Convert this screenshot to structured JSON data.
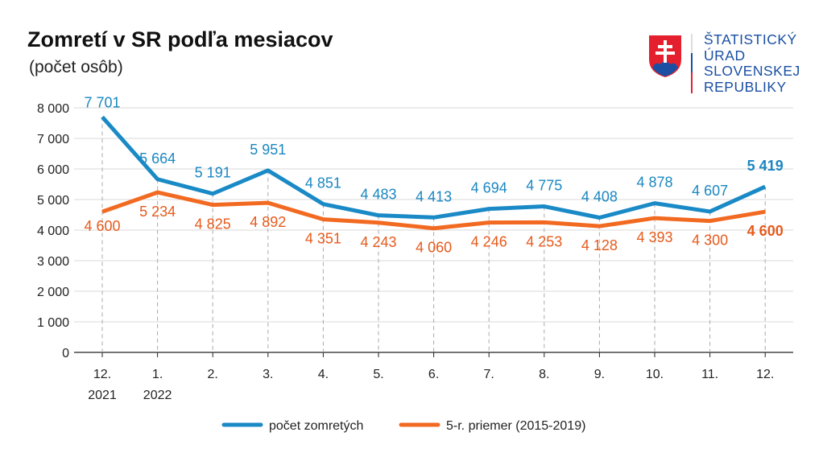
{
  "title": "Zomretí v SR podľa mesiacov",
  "subtitle": "(počet osôb)",
  "logo": {
    "lines": [
      "ŠTATISTICKÝ",
      "ÚRAD",
      "SLOVENSKEJ",
      "REPUBLIKY"
    ]
  },
  "chart_data": {
    "type": "line",
    "categories": [
      [
        "12.",
        "2021"
      ],
      [
        "1.",
        "2022"
      ],
      [
        "2.",
        ""
      ],
      [
        "3.",
        ""
      ],
      [
        "4.",
        ""
      ],
      [
        "5.",
        ""
      ],
      [
        "6.",
        ""
      ],
      [
        "7.",
        ""
      ],
      [
        "8.",
        ""
      ],
      [
        "9.",
        ""
      ],
      [
        "10.",
        ""
      ],
      [
        "11.",
        ""
      ],
      [
        "12.",
        ""
      ]
    ],
    "ylim": [
      0,
      8000
    ],
    "yticks": [
      0,
      1000,
      2000,
      3000,
      4000,
      5000,
      6000,
      7000,
      8000
    ],
    "ytick_labels": [
      "0",
      "1 000",
      "2 000",
      "3 000",
      "4 000",
      "5 000",
      "6 000",
      "7 000",
      "8 000"
    ],
    "grid": true,
    "legend_position": "bottom",
    "series": [
      {
        "name": "počet zomretých",
        "color": "#1a8ac6",
        "label_color": "#1a87c2",
        "values": [
          7701,
          5664,
          5191,
          5951,
          4851,
          4483,
          4413,
          4694,
          4775,
          4408,
          4878,
          4607,
          5419
        ],
        "labels": [
          "7 701",
          "5 664",
          "5 191",
          "5 951",
          "4 851",
          "4 483",
          "4 413",
          "4 694",
          "4 775",
          "4 408",
          "4 878",
          "4 607",
          "5 419"
        ]
      },
      {
        "name": "5-r. priemer (2015-2019)",
        "color": "#f26a21",
        "label_color": "#e65a1c",
        "values": [
          4600,
          5234,
          4825,
          4892,
          4351,
          4243,
          4060,
          4246,
          4253,
          4128,
          4393,
          4300,
          4600
        ],
        "labels": [
          "4 600",
          "5 234",
          "4 825",
          "4 892",
          "4 351",
          "4 243",
          "4 060",
          "4 246",
          "4 253",
          "4 128",
          "4 393",
          "4 300",
          "4 600"
        ]
      }
    ]
  }
}
